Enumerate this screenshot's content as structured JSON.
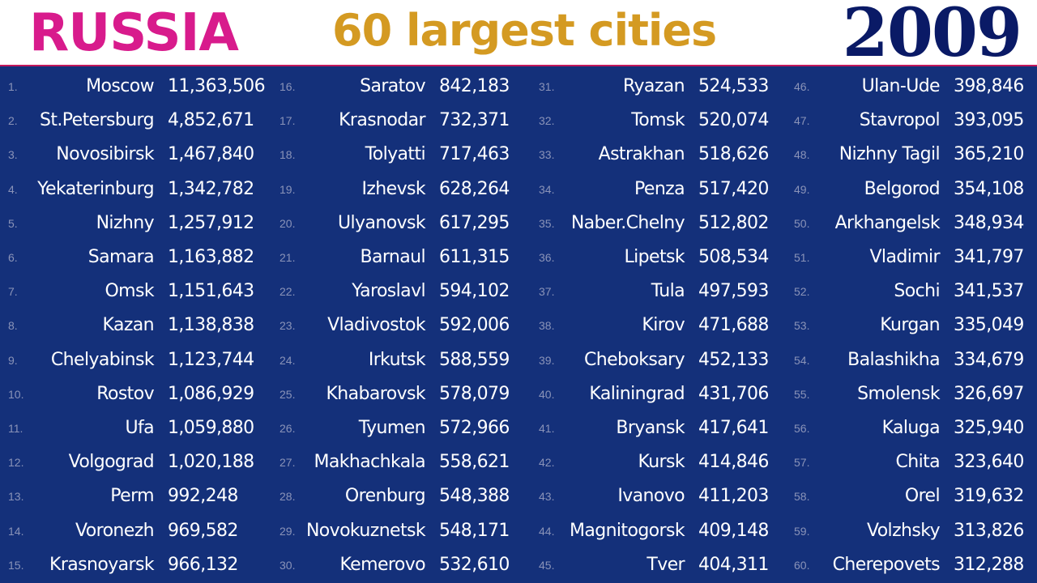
{
  "header": {
    "country": "RUSSIA",
    "subtitle": "60 largest cities",
    "year": "2009"
  },
  "colors": {
    "background": "#14307a",
    "country": "#d81b8c",
    "subtitle": "#d49a22",
    "year": "#0a1a66",
    "rank": "#8a93b8"
  },
  "cities": [
    {
      "rank": "1.",
      "name": "Moscow",
      "population": "11,363,506"
    },
    {
      "rank": "2.",
      "name": "St.Petersburg",
      "population": "4,852,671"
    },
    {
      "rank": "3.",
      "name": "Novosibirsk",
      "population": "1,467,840"
    },
    {
      "rank": "4.",
      "name": "Yekaterinburg",
      "population": "1,342,782"
    },
    {
      "rank": "5.",
      "name": "Nizhny",
      "population": "1,257,912"
    },
    {
      "rank": "6.",
      "name": "Samara",
      "population": "1,163,882"
    },
    {
      "rank": "7.",
      "name": "Omsk",
      "population": "1,151,643"
    },
    {
      "rank": "8.",
      "name": "Kazan",
      "population": "1,138,838"
    },
    {
      "rank": "9.",
      "name": "Chelyabinsk",
      "population": "1,123,744"
    },
    {
      "rank": "10.",
      "name": "Rostov",
      "population": "1,086,929"
    },
    {
      "rank": "11.",
      "name": "Ufa",
      "population": "1,059,880"
    },
    {
      "rank": "12.",
      "name": "Volgograd",
      "population": "1,020,188"
    },
    {
      "rank": "13.",
      "name": "Perm",
      "population": "992,248"
    },
    {
      "rank": "14.",
      "name": "Voronezh",
      "population": "969,582"
    },
    {
      "rank": "15.",
      "name": "Krasnoyarsk",
      "population": "966,132"
    },
    {
      "rank": "16.",
      "name": "Saratov",
      "population": "842,183"
    },
    {
      "rank": "17.",
      "name": "Krasnodar",
      "population": "732,371"
    },
    {
      "rank": "18.",
      "name": "Tolyatti",
      "population": "717,463"
    },
    {
      "rank": "19.",
      "name": "Izhevsk",
      "population": "628,264"
    },
    {
      "rank": "20.",
      "name": "Ulyanovsk",
      "population": "617,295"
    },
    {
      "rank": "21.",
      "name": "Barnaul",
      "population": "611,315"
    },
    {
      "rank": "22.",
      "name": "Yaroslavl",
      "population": "594,102"
    },
    {
      "rank": "23.",
      "name": "Vladivostok",
      "population": "592,006"
    },
    {
      "rank": "24.",
      "name": "Irkutsk",
      "population": "588,559"
    },
    {
      "rank": "25.",
      "name": "Khabarovsk",
      "population": "578,079"
    },
    {
      "rank": "26.",
      "name": "Tyumen",
      "population": "572,966"
    },
    {
      "rank": "27.",
      "name": "Makhachkala",
      "population": "558,621"
    },
    {
      "rank": "28.",
      "name": "Orenburg",
      "population": "548,388"
    },
    {
      "rank": "29.",
      "name": "Novokuznetsk",
      "population": "548,171"
    },
    {
      "rank": "30.",
      "name": "Kemerovo",
      "population": "532,610"
    },
    {
      "rank": "31.",
      "name": "Ryazan",
      "population": "524,533"
    },
    {
      "rank": "32.",
      "name": "Tomsk",
      "population": "520,074"
    },
    {
      "rank": "33.",
      "name": "Astrakhan",
      "population": "518,626"
    },
    {
      "rank": "34.",
      "name": "Penza",
      "population": "517,420"
    },
    {
      "rank": "35.",
      "name": "Naber.Chelny",
      "population": "512,802"
    },
    {
      "rank": "36.",
      "name": "Lipetsk",
      "population": "508,534"
    },
    {
      "rank": "37.",
      "name": "Tula",
      "population": "497,593"
    },
    {
      "rank": "38.",
      "name": "Kirov",
      "population": "471,688"
    },
    {
      "rank": "39.",
      "name": "Cheboksary",
      "population": "452,133"
    },
    {
      "rank": "40.",
      "name": "Kaliningrad",
      "population": "431,706"
    },
    {
      "rank": "41.",
      "name": "Bryansk",
      "population": "417,641"
    },
    {
      "rank": "42.",
      "name": "Kursk",
      "population": "414,846"
    },
    {
      "rank": "43.",
      "name": "Ivanovo",
      "population": "411,203"
    },
    {
      "rank": "44.",
      "name": "Magnitogorsk",
      "population": "409,148"
    },
    {
      "rank": "45.",
      "name": "Tver",
      "population": "404,311"
    },
    {
      "rank": "46.",
      "name": "Ulan-Ude",
      "population": "398,846"
    },
    {
      "rank": "47.",
      "name": "Stavropol",
      "population": "393,095"
    },
    {
      "rank": "48.",
      "name": "Nizhny Tagil",
      "population": "365,210"
    },
    {
      "rank": "49.",
      "name": "Belgorod",
      "population": "354,108"
    },
    {
      "rank": "50.",
      "name": "Arkhangelsk",
      "population": "348,934"
    },
    {
      "rank": "51.",
      "name": "Vladimir",
      "population": "341,797"
    },
    {
      "rank": "52.",
      "name": "Sochi",
      "population": "341,537"
    },
    {
      "rank": "53.",
      "name": "Kurgan",
      "population": "335,049"
    },
    {
      "rank": "54.",
      "name": "Balashikha",
      "population": "334,679"
    },
    {
      "rank": "55.",
      "name": "Smolensk",
      "population": "326,697"
    },
    {
      "rank": "56.",
      "name": "Kaluga",
      "population": "325,940"
    },
    {
      "rank": "57.",
      "name": "Chita",
      "population": "323,640"
    },
    {
      "rank": "58.",
      "name": "Orel",
      "population": "319,632"
    },
    {
      "rank": "59.",
      "name": "Volzhsky",
      "population": "313,826"
    },
    {
      "rank": "60.",
      "name": "Cherepovets",
      "population": "312,288"
    }
  ]
}
